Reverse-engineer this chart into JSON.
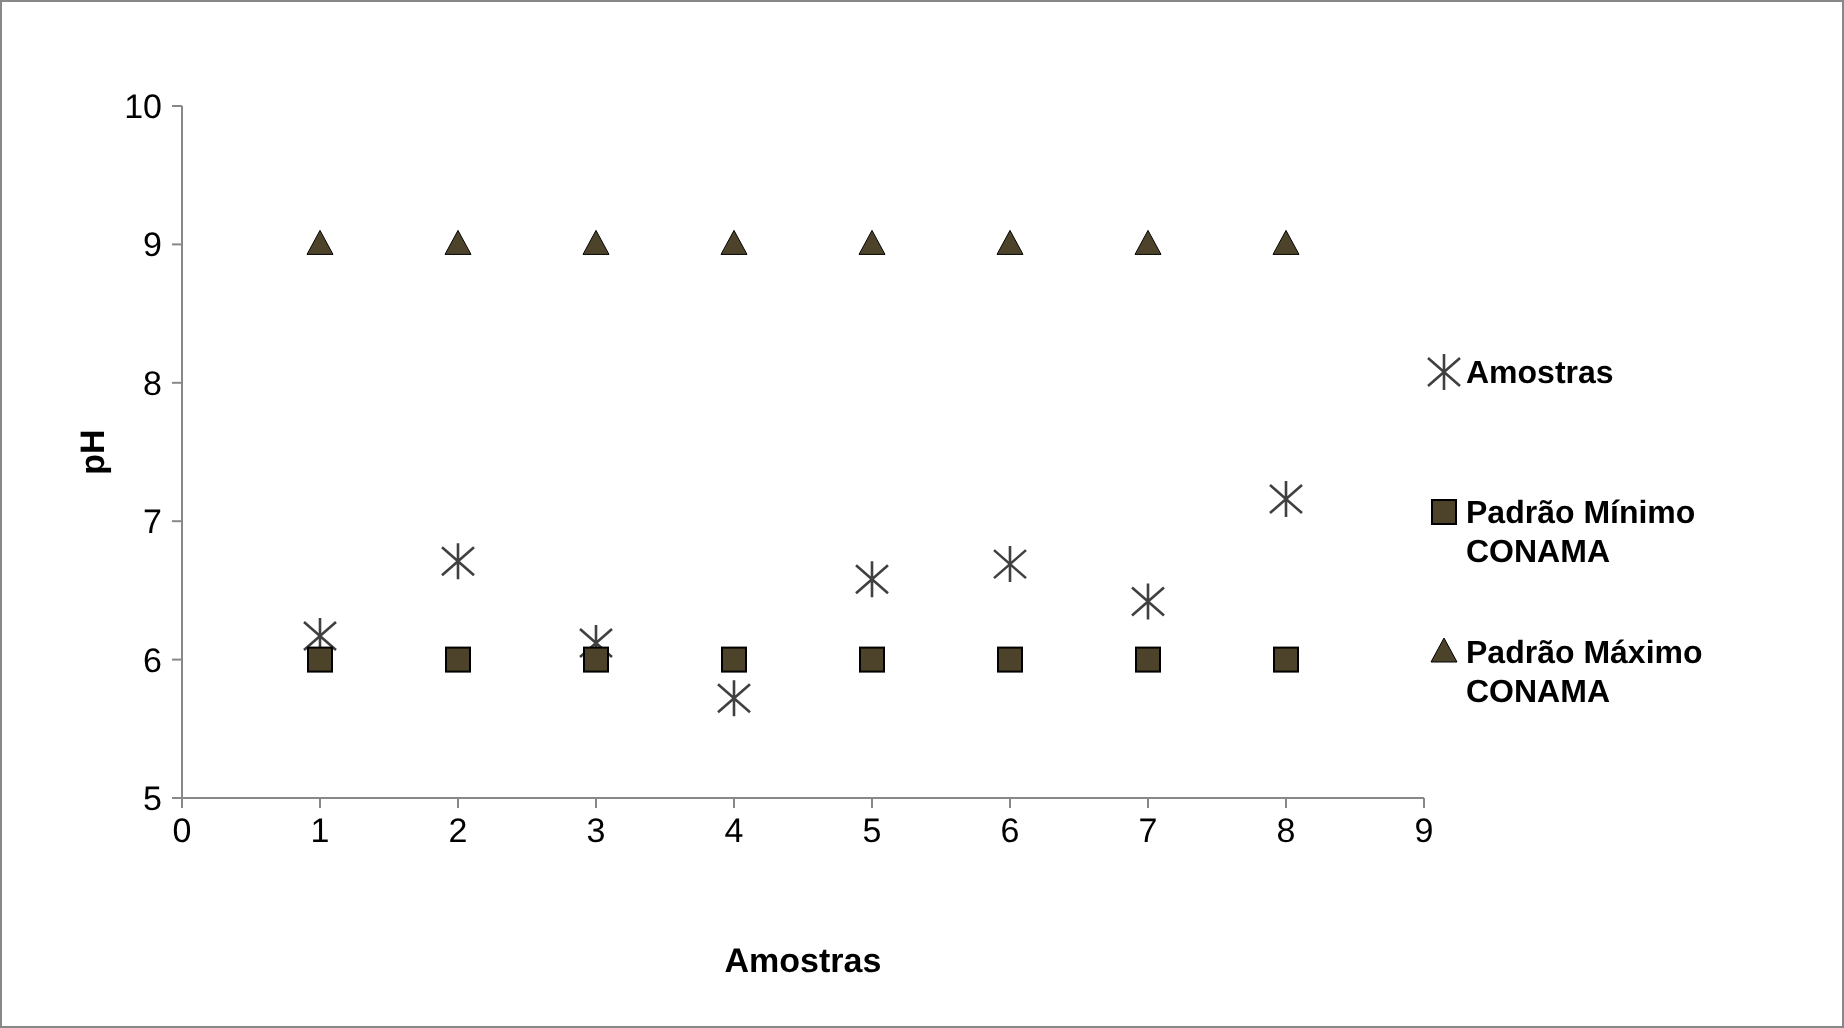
{
  "chart_data": {
    "type": "scatter",
    "xlabel": "Amostras",
    "ylabel": "pH",
    "x": [
      1,
      2,
      3,
      4,
      5,
      6,
      7,
      8
    ],
    "series": [
      {
        "name": "Amostras",
        "color": "#404040",
        "marker": "cross",
        "values": [
          6.17,
          6.71,
          6.12,
          5.72,
          6.58,
          6.69,
          6.42,
          7.16
        ]
      },
      {
        "name": "Padrão Mínimo CONAMA",
        "color": "#4d432a",
        "marker": "square",
        "values": [
          6,
          6,
          6,
          6,
          6,
          6,
          6,
          6
        ]
      },
      {
        "name": "Padrão Máximo CONAMA",
        "color": "#4d432a",
        "marker": "triangle",
        "values": [
          9,
          9,
          9,
          9,
          9,
          9,
          9,
          9
        ]
      }
    ],
    "xlim": [
      0,
      9
    ],
    "xticks": [
      0,
      1,
      2,
      3,
      4,
      5,
      6,
      7,
      8,
      9
    ],
    "ylim": [
      5,
      10
    ],
    "yticks": [
      5,
      6,
      7,
      8,
      9,
      10
    ],
    "grid": false,
    "legend": "right"
  }
}
